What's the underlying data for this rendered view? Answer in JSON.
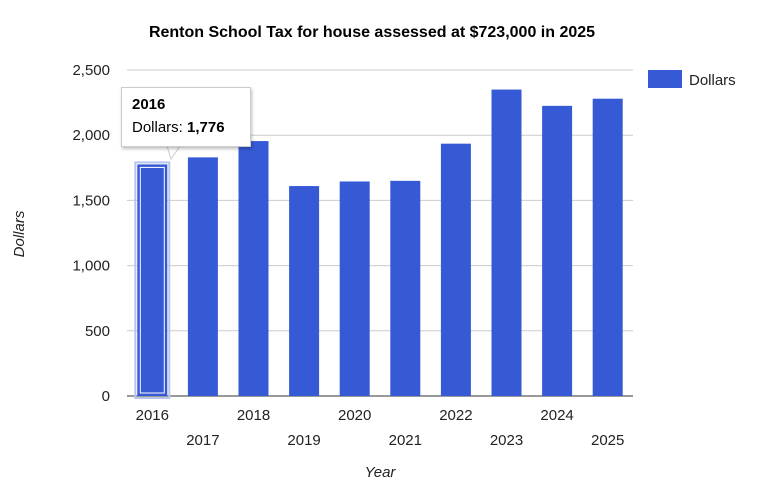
{
  "chart_data": {
    "type": "bar",
    "title": "Renton School Tax for house assessed at $723,000 in 2025",
    "xlabel": "Year",
    "ylabel": "Dollars",
    "categories": [
      "2016",
      "2017",
      "2018",
      "2019",
      "2020",
      "2021",
      "2022",
      "2023",
      "2024",
      "2025"
    ],
    "series": [
      {
        "name": "Dollars",
        "values": [
          1776,
          1830,
          1955,
          1610,
          1645,
          1650,
          1935,
          2350,
          2225,
          2280
        ]
      }
    ],
    "ylim": [
      0,
      2500
    ],
    "yticks": [
      "0",
      "500",
      "1,000",
      "1,500",
      "2,000",
      "2,500"
    ],
    "grid": true,
    "legend": "right",
    "bar_color": "#3659d6",
    "highlight_index": 0
  },
  "tooltip": {
    "title": "2016",
    "label": "Dollars:",
    "value": "1,776"
  }
}
